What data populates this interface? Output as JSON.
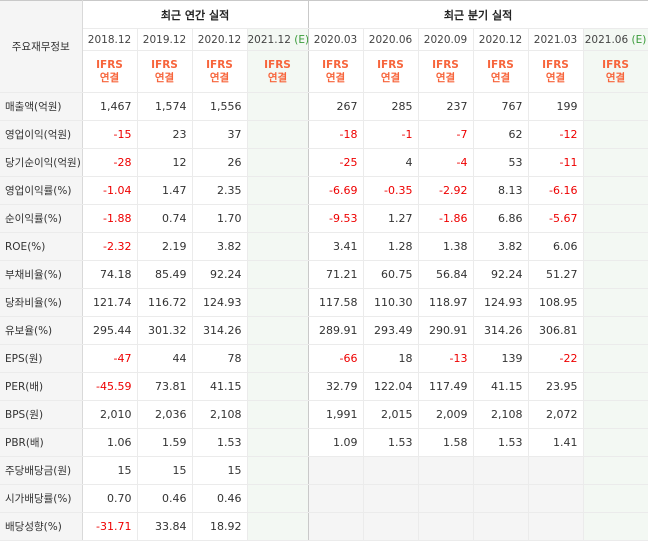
{
  "header": {
    "row_label_title": "주요재무정보",
    "annual_title": "최근 연간 실적",
    "quarterly_title": "최근 분기 실적",
    "annual_periods": [
      "2018.12",
      "2019.12",
      "2020.12",
      "2021.12"
    ],
    "quarterly_periods": [
      "2020.03",
      "2020.06",
      "2020.09",
      "2020.12",
      "2021.03",
      "2021.06"
    ],
    "estimate_marker": "(E)",
    "ifrs_line1": "IFRS",
    "ifrs_line2": "연결"
  },
  "colors": {
    "negative": "#e00000",
    "ifrs": "#f7653c",
    "estimate_bg": "#f3f8f3"
  },
  "rows": [
    {
      "label": "매출액(억원)",
      "annual": [
        "1,467",
        "1,574",
        "1,556",
        ""
      ],
      "quarterly": [
        "267",
        "285",
        "237",
        "767",
        "199",
        ""
      ]
    },
    {
      "label": "영업이익(억원)",
      "annual": [
        "-15",
        "23",
        "37",
        ""
      ],
      "quarterly": [
        "-18",
        "-1",
        "-7",
        "62",
        "-12",
        ""
      ]
    },
    {
      "label": "당기순이익(억원)",
      "annual": [
        "-28",
        "12",
        "26",
        ""
      ],
      "quarterly": [
        "-25",
        "4",
        "-4",
        "53",
        "-11",
        ""
      ]
    },
    {
      "label": "영업이익률(%)",
      "annual": [
        "-1.04",
        "1.47",
        "2.35",
        ""
      ],
      "quarterly": [
        "-6.69",
        "-0.35",
        "-2.92",
        "8.13",
        "-6.16",
        ""
      ]
    },
    {
      "label": "순이익률(%)",
      "annual": [
        "-1.88",
        "0.74",
        "1.70",
        ""
      ],
      "quarterly": [
        "-9.53",
        "1.27",
        "-1.86",
        "6.86",
        "-5.67",
        ""
      ]
    },
    {
      "label": "ROE(%)",
      "annual": [
        "-2.32",
        "2.19",
        "3.82",
        ""
      ],
      "quarterly": [
        "3.41",
        "1.28",
        "1.38",
        "3.82",
        "6.06",
        ""
      ]
    },
    {
      "label": "부채비율(%)",
      "annual": [
        "74.18",
        "85.49",
        "92.24",
        ""
      ],
      "quarterly": [
        "71.21",
        "60.75",
        "56.84",
        "92.24",
        "51.27",
        ""
      ]
    },
    {
      "label": "당좌비율(%)",
      "annual": [
        "121.74",
        "116.72",
        "124.93",
        ""
      ],
      "quarterly": [
        "117.58",
        "110.30",
        "118.97",
        "124.93",
        "108.95",
        ""
      ]
    },
    {
      "label": "유보율(%)",
      "annual": [
        "295.44",
        "301.32",
        "314.26",
        ""
      ],
      "quarterly": [
        "289.91",
        "293.49",
        "290.91",
        "314.26",
        "306.81",
        ""
      ]
    },
    {
      "label": "EPS(원)",
      "annual": [
        "-47",
        "44",
        "78",
        ""
      ],
      "quarterly": [
        "-66",
        "18",
        "-13",
        "139",
        "-22",
        ""
      ]
    },
    {
      "label": "PER(배)",
      "annual": [
        "-45.59",
        "73.81",
        "41.15",
        ""
      ],
      "quarterly": [
        "32.79",
        "122.04",
        "117.49",
        "41.15",
        "23.95",
        ""
      ]
    },
    {
      "label": "BPS(원)",
      "annual": [
        "2,010",
        "2,036",
        "2,108",
        ""
      ],
      "quarterly": [
        "1,991",
        "2,015",
        "2,009",
        "2,108",
        "2,072",
        ""
      ]
    },
    {
      "label": "PBR(배)",
      "annual": [
        "1.06",
        "1.59",
        "1.53",
        ""
      ],
      "quarterly": [
        "1.09",
        "1.53",
        "1.58",
        "1.53",
        "1.41",
        ""
      ]
    },
    {
      "label": "주당배당금(원)",
      "annual": [
        "15",
        "15",
        "15",
        ""
      ],
      "quarterly": [
        "",
        "",
        "",
        "",
        "",
        ""
      ]
    },
    {
      "label": "시가배당률(%)",
      "annual": [
        "0.70",
        "0.46",
        "0.46",
        ""
      ],
      "quarterly": [
        "",
        "",
        "",
        "",
        "",
        ""
      ]
    },
    {
      "label": "배당성향(%)",
      "annual": [
        "-31.71",
        "33.84",
        "18.92",
        ""
      ],
      "quarterly": [
        "",
        "",
        "",
        "",
        "",
        ""
      ]
    }
  ]
}
